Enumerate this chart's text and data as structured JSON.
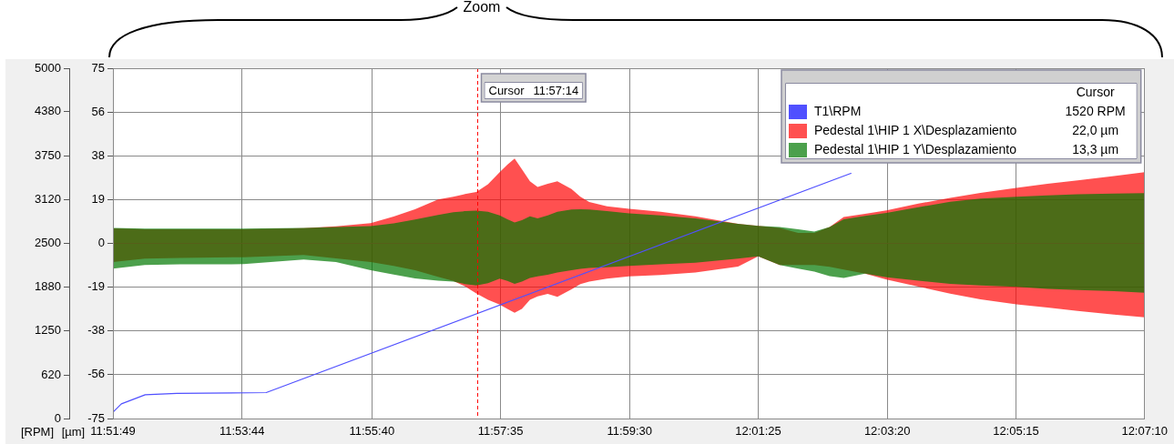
{
  "chart_data": {
    "type": "area",
    "annotations": [
      "Zoom",
      "Cursor",
      "1520 RPM",
      "22,0 µm",
      "13,3 µm",
      "11:57:14"
    ],
    "xlim": [
      11.8636,
      12.1194
    ],
    "xticks": [
      {
        "value": 11.8636,
        "label": "11:51:49"
      },
      {
        "value": 11.8956,
        "label": "11:53:44"
      },
      {
        "value": 11.9278,
        "label": "11:55:40"
      },
      {
        "value": 11.9597,
        "label": "11:57:35"
      },
      {
        "value": 11.9917,
        "label": "11:59:30"
      },
      {
        "value": 12.0236,
        "label": "12:01:25"
      },
      {
        "value": 12.0556,
        "label": "12:03:20"
      },
      {
        "value": 12.0875,
        "label": "12:05:15"
      },
      {
        "value": 12.1194,
        "label": "12:07:10"
      }
    ],
    "ylabel": "[µm]",
    "ylim": [
      -75,
      75
    ],
    "yticks": [
      -75,
      {
        "value": -56.25,
        "label": "-56"
      },
      {
        "value": -37.5,
        "label": "-38"
      },
      {
        "value": -18.75,
        "label": "-19"
      },
      0,
      {
        "value": 18.75,
        "label": "19"
      },
      {
        "value": 37.5,
        "label": "38"
      },
      {
        "value": 56.25,
        "label": "56"
      },
      75
    ],
    "y2label": "[RPM]",
    "y2lim": [
      0,
      5000
    ],
    "y2ticks": [
      0,
      620,
      1250,
      1880,
      2500,
      3120,
      3750,
      4380,
      5000
    ],
    "grid": true,
    "legend": "top right",
    "marker": "none",
    "ref_lines": [
      {
        "axis": "x",
        "value": 11.953889,
        "label": "Cursor",
        "color": "#ff0000",
        "line_style": "dashed"
      }
    ],
    "x": [
      11.8636,
      11.8715,
      11.8803,
      11.896,
      11.9109,
      11.9189,
      11.9275,
      11.9332,
      11.9385,
      11.9442,
      11.948,
      11.9509,
      11.9537,
      11.9566,
      11.9595,
      11.9614,
      11.9632,
      11.965,
      11.967,
      11.9689,
      11.9714,
      11.9738,
      11.9773,
      11.9795,
      11.9817,
      11.9861,
      11.9916,
      11.9994,
      12.008,
      12.0186,
      12.0236,
      12.0289,
      12.0335,
      12.0375,
      12.0413,
      12.0448,
      12.0501,
      12.0554,
      12.0633,
      12.0712,
      12.0787,
      12.0876,
      12.0953,
      12.1028,
      12.1118,
      12.1194
    ],
    "series": [
      {
        "name": "T1\\RPM",
        "type": "line",
        "axis": "y2",
        "color": "#5050ff",
        "x": [
          11.8636,
          11.8657,
          11.8716,
          11.8794,
          11.9016,
          12.0466
        ],
        "values": [
          90,
          210,
          340,
          360,
          370,
          3500
        ]
      },
      {
        "name": "Pedestal 1\\HIP 1 X\\Desplazamiento",
        "color": "#ff5050",
        "values": [
          6.4,
          6.0,
          6.0,
          6.0,
          6.5,
          7.3,
          8.7,
          11.5,
          14.6,
          18.8,
          20.0,
          21.1,
          22.0,
          25.3,
          30.5,
          33.7,
          36.3,
          31.8,
          26.6,
          24.2,
          25.5,
          26.6,
          23.3,
          20.0,
          17.7,
          15.9,
          14.8,
          13.5,
          11.6,
          8.4,
          7.5,
          6.6,
          4.5,
          4.5,
          7.0,
          11.3,
          12.7,
          14.1,
          17.0,
          19.5,
          21.6,
          23.8,
          25.5,
          27.0,
          28.8,
          30.5
        ]
      },
      {
        "color": "#ff5050",
        "values": [
          -8.0,
          -6.5,
          -6.2,
          -5.9,
          -5.0,
          -6.4,
          -8.0,
          -9.6,
          -11.5,
          -14.3,
          -16.1,
          -18.4,
          -21.4,
          -24.2,
          -26.2,
          -28.1,
          -29.7,
          -28.1,
          -24.2,
          -22.7,
          -21.6,
          -22.9,
          -19.7,
          -17.4,
          -16.4,
          -15.1,
          -14.1,
          -13.5,
          -12.5,
          -9.9,
          -5.6,
          -9.3,
          -9.3,
          -9.3,
          -10.0,
          -11.2,
          -13.0,
          -15.5,
          -18.5,
          -21.5,
          -24.0,
          -26.1,
          -27.5,
          -28.9,
          -30.5,
          -31.7
        ]
      },
      {
        "name": "Pedestal 1\\HIP 1 Y\\Desplazamiento",
        "color": "#4ca04c",
        "values": [
          6.6,
          6.3,
          6.3,
          6.3,
          6.6,
          7.0,
          7.4,
          8.6,
          10.2,
          12.2,
          13.3,
          13.8,
          14.0,
          13.5,
          12.0,
          10.3,
          9.0,
          9.9,
          11.6,
          10.7,
          12.0,
          13.5,
          14.5,
          14.6,
          14.5,
          13.8,
          12.9,
          12.0,
          10.7,
          8.4,
          7.5,
          7.0,
          6.0,
          5.1,
          7.0,
          10.3,
          11.8,
          13.1,
          15.5,
          17.8,
          19.2,
          20.0,
          20.6,
          21.0,
          21.3,
          21.5
        ]
      },
      {
        "color": "#4ca04c",
        "values": [
          -10.8,
          -9.3,
          -9.0,
          -8.9,
          -6.9,
          -8.0,
          -11.5,
          -13.3,
          -15.0,
          -16.0,
          -16.4,
          -17.4,
          -18.0,
          -17.0,
          -15.1,
          -16.1,
          -17.3,
          -16.4,
          -14.8,
          -14.1,
          -13.4,
          -12.5,
          -11.5,
          -10.9,
          -10.5,
          -10.2,
          -9.6,
          -9.0,
          -8.3,
          -6.5,
          -5.6,
          -9.3,
          -10.8,
          -12.1,
          -14.0,
          -14.8,
          -13.0,
          -14.5,
          -16.0,
          -17.3,
          -18.0,
          -18.6,
          -19.5,
          -20.0,
          -20.5,
          -21.1
        ]
      }
    ]
  }
}
